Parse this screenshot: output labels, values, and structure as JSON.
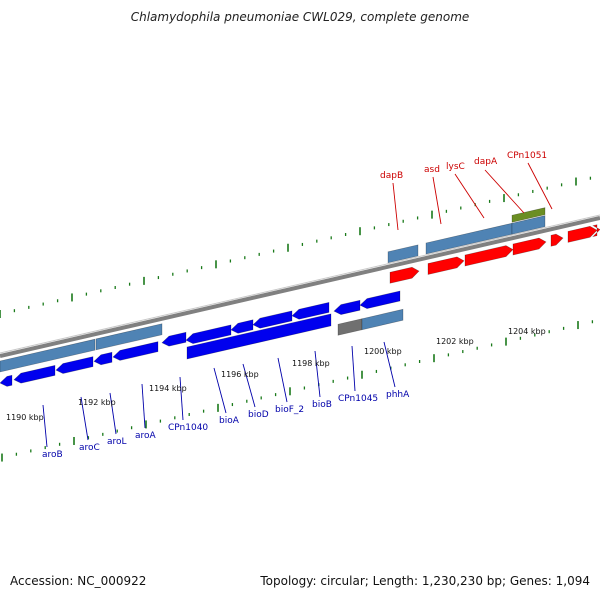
{
  "title": "Chlamydophila pneumoniae CWL029, complete genome",
  "footer": {
    "accession": "Accession: NC_000922",
    "stats": "Topology: circular; Length: 1,230,230 bp; Genes: 1,094"
  },
  "colors": {
    "top_strand_gene": "#ff0000",
    "bottom_strand_gene": "#0000ee",
    "cds_feature": "#4f83b4",
    "misc_feature": "#6b8e23",
    "pseudo_feature": "#707070",
    "backbone": "#808080",
    "tick": "#1a7a1a",
    "top_label": "#cc0000",
    "bottom_label": "#0000aa"
  },
  "scale_labels": [
    "1190 kbp",
    "1192 kbp",
    "1194 kbp",
    "1196 kbp",
    "1198 kbp",
    "1200 kbp",
    "1202 kbp",
    "1204 kbp"
  ],
  "top_genes": [
    "dapB",
    "asd",
    "lysC",
    "dapA",
    "CPn1051"
  ],
  "bottom_genes": [
    "aroB",
    "aroC",
    "aroL",
    "aroA",
    "CPn1040",
    "bioA",
    "bioD",
    "bioF_2",
    "bioB",
    "CPn1045",
    "phhA"
  ]
}
